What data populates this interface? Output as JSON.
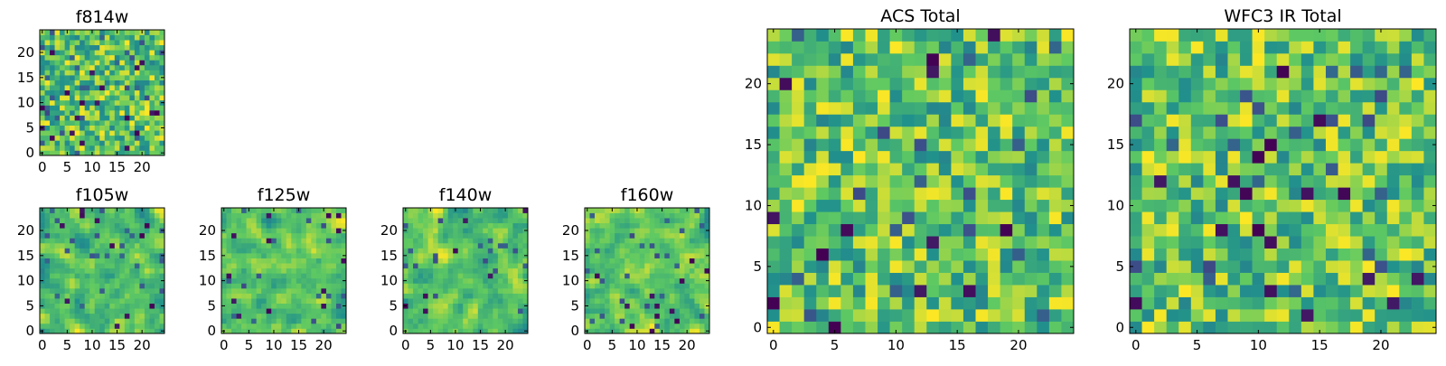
{
  "colors": {
    "cmap": [
      "#440154",
      "#3b528b",
      "#21918c",
      "#5ec962",
      "#fde725"
    ],
    "axis_edge": "#000000",
    "background": "#ffffff"
  },
  "chart_data": [
    {
      "id": "f814w",
      "type": "heatmap",
      "title": "f814w",
      "grid_size": 25,
      "xlim": [
        0,
        25
      ],
      "ylim": [
        0,
        25
      ],
      "xticks": [
        0,
        5,
        10,
        15,
        20
      ],
      "yticks": [
        0,
        5,
        10,
        15,
        20
      ],
      "xticklabels": [
        "0",
        "5",
        "10",
        "15",
        "20"
      ],
      "yticklabels": [
        "0",
        "5",
        "10",
        "15",
        "20"
      ],
      "value_range": [
        0,
        1
      ],
      "seed": 11,
      "smooth": 0,
      "outlier_rate": 0.03
    },
    {
      "id": "f105w",
      "type": "heatmap",
      "title": "f105w",
      "grid_size": 25,
      "xlim": [
        0,
        25
      ],
      "ylim": [
        0,
        25
      ],
      "xticks": [
        0,
        5,
        10,
        15,
        20
      ],
      "yticks": [
        0,
        5,
        10,
        15,
        20
      ],
      "xticklabels": [
        "0",
        "5",
        "10",
        "15",
        "20"
      ],
      "yticklabels": [
        "0",
        "5",
        "10",
        "15",
        "20"
      ],
      "value_range": [
        0,
        1
      ],
      "seed": 23,
      "smooth": 1,
      "outlier_rate": 0.015
    },
    {
      "id": "f125w",
      "type": "heatmap",
      "title": "f125w",
      "grid_size": 25,
      "xlim": [
        0,
        25
      ],
      "ylim": [
        0,
        25
      ],
      "xticks": [
        0,
        5,
        10,
        15,
        20
      ],
      "yticks": [
        0,
        5,
        10,
        15,
        20
      ],
      "xticklabels": [
        "0",
        "5",
        "10",
        "15",
        "20"
      ],
      "yticklabels": [
        "0",
        "5",
        "10",
        "15",
        "20"
      ],
      "value_range": [
        0,
        1
      ],
      "seed": 37,
      "smooth": 1,
      "outlier_rate": 0.015
    },
    {
      "id": "f140w",
      "type": "heatmap",
      "title": "f140w",
      "grid_size": 25,
      "xlim": [
        0,
        25
      ],
      "ylim": [
        0,
        25
      ],
      "xticks": [
        0,
        5,
        10,
        15,
        20
      ],
      "yticks": [
        0,
        5,
        10,
        15,
        20
      ],
      "xticklabels": [
        "0",
        "5",
        "10",
        "15",
        "20"
      ],
      "yticklabels": [
        "0",
        "5",
        "10",
        "15",
        "20"
      ],
      "value_range": [
        0,
        1
      ],
      "seed": 41,
      "smooth": 1,
      "outlier_rate": 0.015
    },
    {
      "id": "f160w",
      "type": "heatmap",
      "title": "f160w",
      "grid_size": 25,
      "xlim": [
        0,
        25
      ],
      "ylim": [
        0,
        25
      ],
      "xticks": [
        0,
        5,
        10,
        15,
        20
      ],
      "yticks": [
        0,
        5,
        10,
        15,
        20
      ],
      "xticklabels": [
        "0",
        "5",
        "10",
        "15",
        "20"
      ],
      "yticklabels": [
        "0",
        "5",
        "10",
        "15",
        "20"
      ],
      "value_range": [
        0,
        1
      ],
      "seed": 53,
      "smooth": 1,
      "outlier_rate": 0.015
    },
    {
      "id": "acs-total",
      "type": "heatmap",
      "title": "ACS Total",
      "grid_size": 25,
      "xlim": [
        0,
        25
      ],
      "ylim": [
        0,
        25
      ],
      "xticks": [
        0,
        5,
        10,
        15,
        20
      ],
      "yticks": [
        0,
        5,
        10,
        15,
        20
      ],
      "xticklabels": [
        "0",
        "5",
        "10",
        "15",
        "20"
      ],
      "yticklabels": [
        "0",
        "5",
        "10",
        "15",
        "20"
      ],
      "value_range": [
        0,
        1
      ],
      "seed": 67,
      "smooth": 0,
      "outlier_rate": 0.02
    },
    {
      "id": "wfc3-ir-total",
      "type": "heatmap",
      "title": "WFC3 IR Total",
      "grid_size": 25,
      "xlim": [
        0,
        25
      ],
      "ylim": [
        0,
        25
      ],
      "xticks": [
        0,
        5,
        10,
        15,
        20
      ],
      "yticks": [
        0,
        5,
        10,
        15,
        20
      ],
      "xticklabels": [
        "0",
        "5",
        "10",
        "15",
        "20"
      ],
      "yticklabels": [
        "0",
        "5",
        "10",
        "15",
        "20"
      ],
      "value_range": [
        0,
        1
      ],
      "seed": 79,
      "smooth": 0,
      "outlier_rate": 0.025
    }
  ]
}
